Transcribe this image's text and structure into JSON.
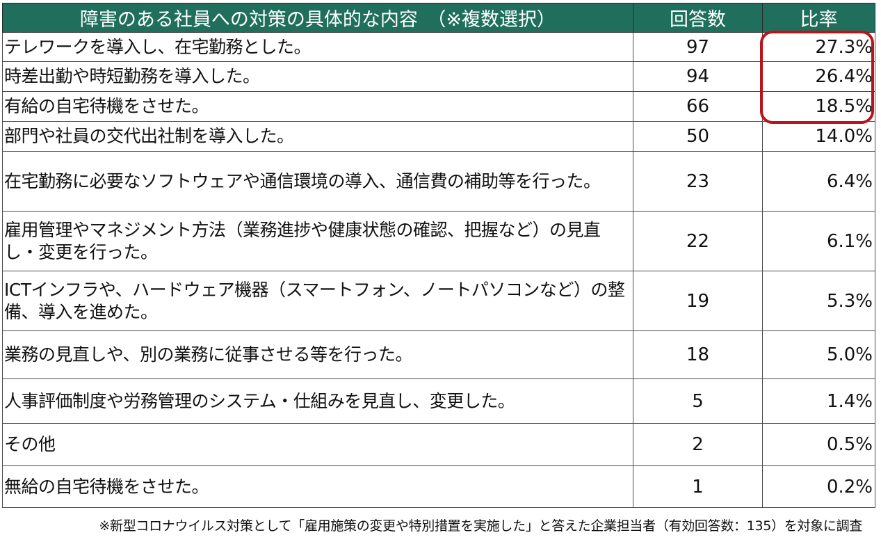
{
  "chart_data": {
    "type": "table",
    "columns": [
      "障害のある社員への対策の具体的な内容　（※複数選択）",
      "回答数",
      "比率"
    ],
    "rows": [
      {
        "label": "テレワークを導入し、在宅勤務とした。",
        "count": 97,
        "ratio": "27.3%"
      },
      {
        "label": "時差出勤や時短勤務を導入した。",
        "count": 94,
        "ratio": "26.4%"
      },
      {
        "label": "有給の自宅待機をさせた。",
        "count": 66,
        "ratio": "18.5%"
      },
      {
        "label": "部門や社員の交代出社制を導入した。",
        "count": 50,
        "ratio": "14.0%"
      },
      {
        "label": "在宅勤務に必要なソフトウェアや通信環境の導入、通信費の補助等を行った。",
        "count": 23,
        "ratio": "6.4%"
      },
      {
        "label": "雇用管理やマネジメント方法（業務進捗や健康状態の確認、把握など）の見直し・変更を行った。",
        "count": 22,
        "ratio": "6.1%"
      },
      {
        "label": "ICTインフラや、ハードウェア機器（スマートフォン、ノートパソコンなど）の整備、導入を進めた。",
        "count": 19,
        "ratio": "5.3%"
      },
      {
        "label": "業務の見直しや、別の業務に従事させる等を行った。",
        "count": 18,
        "ratio": "5.0%"
      },
      {
        "label": "人事評価制度や労務管理のシステム・仕組みを見直し、変更した。",
        "count": 5,
        "ratio": "1.4%"
      },
      {
        "label": "その他",
        "count": 2,
        "ratio": "0.5%"
      },
      {
        "label": "無給の自宅待機をさせた。",
        "count": 1,
        "ratio": "0.2%"
      }
    ],
    "highlighted_rows": [
      0,
      1,
      2
    ],
    "footnote": "※新型コロナウイルス対策として「雇用施策の変更や特別措置を実施した」と答えた企業担当者（有効回答数：135）を対象に調査"
  },
  "colors": {
    "header_background": "#1f6f5c",
    "header_text": "#ffffff",
    "highlight_border": "#b8141b",
    "grid_line": "#4a4a4a"
  }
}
